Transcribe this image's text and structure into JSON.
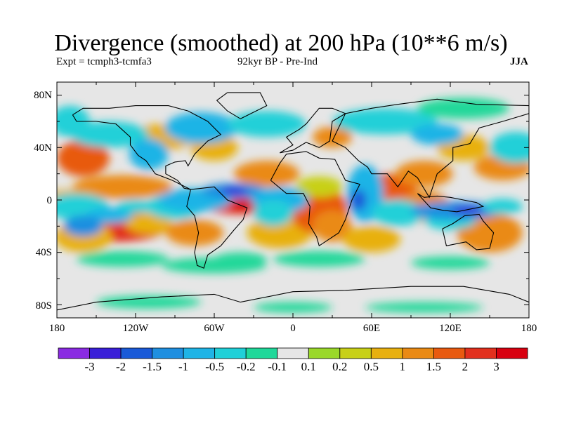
{
  "title": "Divergence (smoothed) at 200 hPa (10**6 m/s)",
  "subtitle_left": "Expt = tcmph3-tcmfa3",
  "subtitle_mid": "92kyr BP - Pre-Ind",
  "subtitle_right": "JJA",
  "lat_labels": [
    "80N",
    "40N",
    "0",
    "40S",
    "80S"
  ],
  "lon_labels": [
    "180",
    "120W",
    "60W",
    "0",
    "60E",
    "120E",
    "180"
  ],
  "colorbar": {
    "labels": [
      "-3",
      "-2",
      "-1.5",
      "-1",
      "-0.5",
      "-0.2",
      "-0.1",
      "0.1",
      "0.2",
      "0.5",
      "1",
      "1.5",
      "2",
      "3"
    ],
    "colors": [
      "#8a2be2",
      "#3a1fd8",
      "#1a5ad8",
      "#1f8fe0",
      "#1fb4e6",
      "#20d0d8",
      "#20d89a",
      "#e6e6e6",
      "#9ad82a",
      "#c8d018",
      "#e8b010",
      "#ea8a14",
      "#e85a10",
      "#e2301e",
      "#d80010"
    ]
  },
  "field_colors": {
    "neutral": "#e6e6e6",
    "coast": "#000000"
  }
}
